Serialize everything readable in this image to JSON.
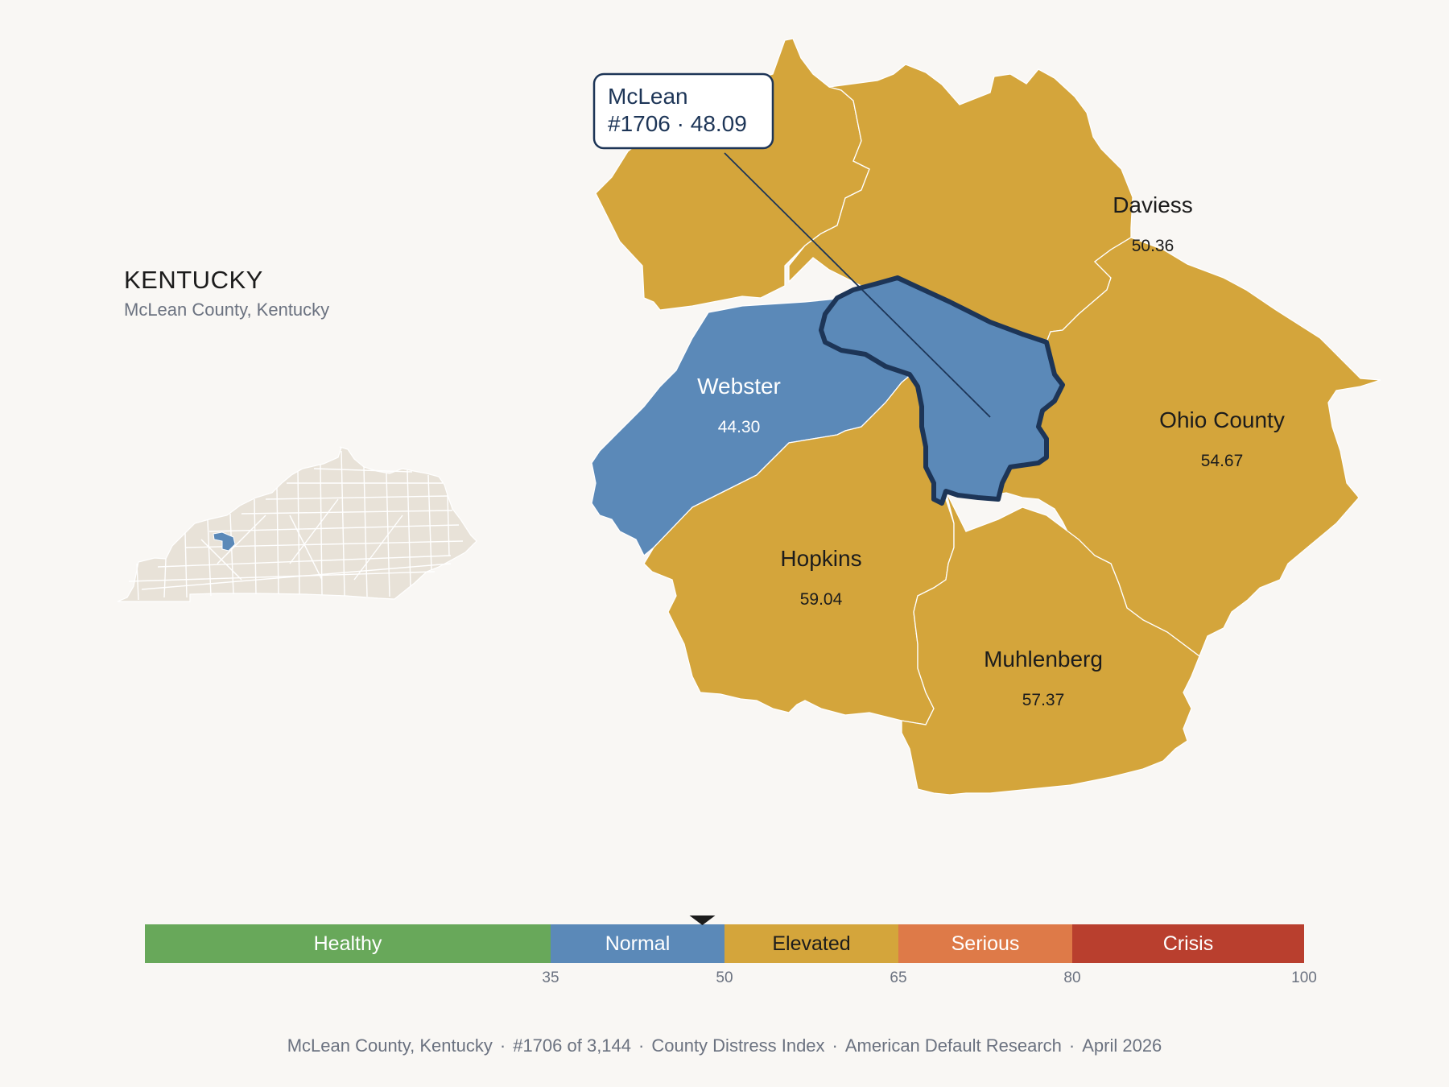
{
  "inset": {
    "state_name": "KENTUCKY",
    "subtitle": "McLean County, Kentucky"
  },
  "map": {
    "selected": {
      "name": "McLean",
      "callout_line2": "#1706 · 48.09",
      "color": "#5b89b8",
      "outline": "#1d3557"
    },
    "counties": [
      {
        "name": "",
        "value": "",
        "color": "#d4a53b"
      },
      {
        "name": "Daviess",
        "value": "50.36",
        "color": "#d4a53b"
      },
      {
        "name": "Webster",
        "value": "44.30",
        "color": "#5b89b8"
      },
      {
        "name": "Ohio County",
        "value": "54.67",
        "color": "#d4a53b"
      },
      {
        "name": "Hopkins",
        "value": "59.04",
        "color": "#d4a53b"
      },
      {
        "name": "Muhlenberg",
        "value": "57.37",
        "color": "#d4a53b"
      }
    ]
  },
  "scale": {
    "min": 0,
    "max": 100,
    "marker_value": 48.09,
    "bands": [
      {
        "label": "Healthy",
        "from": 0,
        "to": 35,
        "color": "#68a85a",
        "text_color": "#ffffff"
      },
      {
        "label": "Normal",
        "from": 35,
        "to": 50,
        "color": "#5b89b8",
        "text_color": "#ffffff"
      },
      {
        "label": "Elevated",
        "from": 50,
        "to": 65,
        "color": "#d4a53b",
        "text_color": "#1c1c1c"
      },
      {
        "label": "Serious",
        "from": 65,
        "to": 80,
        "color": "#de7a48",
        "text_color": "#ffffff"
      },
      {
        "label": "Crisis",
        "from": 80,
        "to": 100,
        "color": "#b93f2e",
        "text_color": "#ffffff"
      }
    ],
    "ticks": [
      "35",
      "50",
      "65",
      "80",
      "100"
    ]
  },
  "footer": {
    "county": "McLean County, Kentucky",
    "rank": "#1706 of 3,144",
    "index": "County Distress Index",
    "source": "American Default Research",
    "date": "April 2026"
  },
  "colors": {
    "background": "#f9f7f4",
    "inset_fill": "#e8e2d8",
    "inset_highlight": "#5b89b8",
    "label_dark": "#1c1c1c",
    "label_light": "#ffffff"
  }
}
